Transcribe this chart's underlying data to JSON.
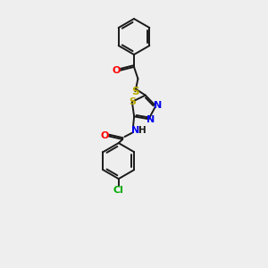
{
  "background_color": "#eeeeee",
  "bond_color": "#1a1a1a",
  "atom_colors": {
    "O": "#ff0000",
    "N": "#0000ee",
    "S": "#bbaa00",
    "Cl": "#00aa00",
    "C": "#1a1a1a",
    "H": "#1a1a1a"
  },
  "lw": 1.4,
  "ring_r": 0.68,
  "td_r": 0.48
}
